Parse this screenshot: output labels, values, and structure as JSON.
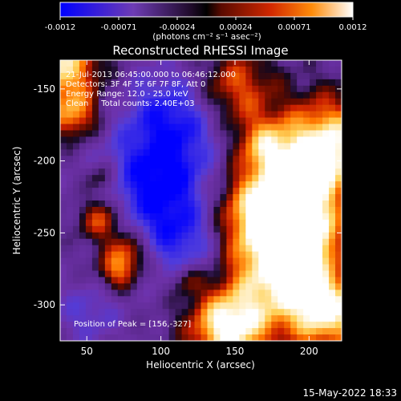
{
  "chart_data": {
    "type": "heatmap",
    "title": "Reconstructed RHESSI Image",
    "xlabel": "Heliocentric X (arcsec)",
    "ylabel": "Heliocentric Y (arcsec)",
    "xlim": [
      32,
      222
    ],
    "ylim": [
      -325,
      -130
    ],
    "xticks": [
      50,
      100,
      150,
      200
    ],
    "yticks": [
      -150,
      -200,
      -250,
      -300
    ],
    "colorbar": {
      "min": -0.0012,
      "max": 0.0012,
      "tick_labels": [
        "-0.0012",
        "-0.00071",
        "-0.00024",
        "0.00024",
        "0.00071",
        "0.0012"
      ],
      "units_label": "(photons cm⁻² s⁻¹ asec⁻²)"
    },
    "annotations": [
      "21-Jul-2013 06:45:00.000 to 06:46:12.000",
      "Detectors: 3F 4F 5F 6F 7F 8F, Att 0",
      "Energy Range: 12.0 - 25.0 keV",
      "Clean     Total counts: 2.40E+03",
      "Position of Peak = [156,-327]"
    ],
    "peak": {
      "x": 156,
      "y": -327
    },
    "footer_date": "15-May-2022 18:33",
    "colors": {
      "background": "#000000",
      "text": "#ffffff",
      "colormap": [
        "#0000ff",
        "#5a46c8",
        "#7828a0",
        "#28143c",
        "#000000",
        "#5a0a00",
        "#c81e00",
        "#ff7800",
        "#ffd25a",
        "#ffffff"
      ]
    }
  }
}
